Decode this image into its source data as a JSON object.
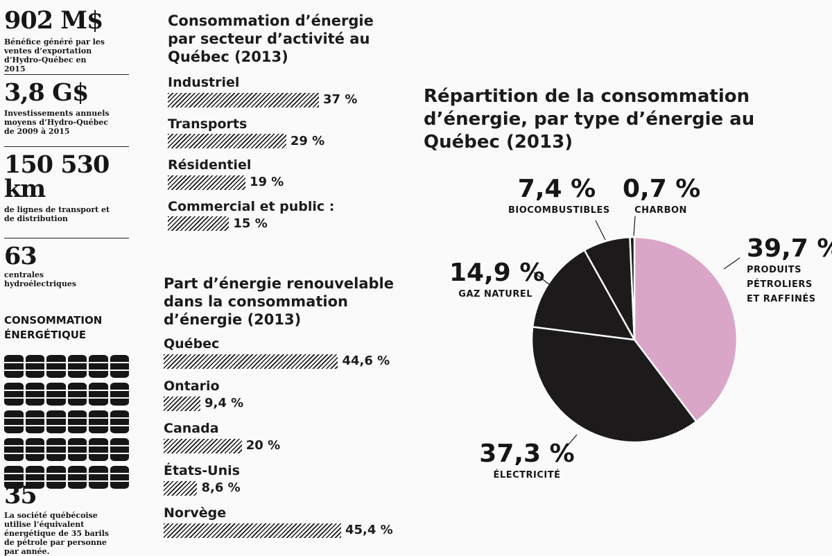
{
  "stats": [
    {
      "value": "902 M$",
      "desc": "Bénéfice généré par les ventes d’exportation d’Hydro-Québec en 2015"
    },
    {
      "value": "3,8 G$",
      "desc": "Investissements annuels moyens d’Hydro-Québec de 2009 à 2015"
    },
    {
      "value": "150 530 km",
      "desc": "de lignes de transport et de distribution"
    },
    {
      "value": "63",
      "desc": "centrales hydroélectriques"
    }
  ],
  "conso": {
    "heading": "CONSOMMATION ÉNERGÉTIQUE",
    "barrels": 35,
    "value": "35",
    "desc": "La société québécoise utilise l’équivalent énergétique de 35 barils de pétrole par personne par année."
  },
  "chart_data": [
    {
      "type": "bar",
      "title": "Consommation d’énergie par secteur d’activité au Québec (2013)",
      "categories": [
        "Industriel",
        "Transports",
        "Résidentiel",
        "Commercial et public :"
      ],
      "values": [
        37,
        29,
        19,
        15
      ],
      "value_labels": [
        "37 %",
        "29 %",
        "19 %",
        "15 %"
      ],
      "unit": "%"
    },
    {
      "type": "bar",
      "title": "Part d’énergie renouvelable dans la consommation d’énergie (2013)",
      "categories": [
        "Québec",
        "Ontario",
        "Canada",
        "États-Unis",
        "Norvège"
      ],
      "values": [
        44.6,
        9.4,
        20,
        8.6,
        45.4
      ],
      "value_labels": [
        "44,6 %",
        "9,4 %",
        "20 %",
        "8,6 %",
        "45,4 %"
      ],
      "unit": "%"
    },
    {
      "type": "pie",
      "title": "Répartition de la consommation d’énergie, par type d’énergie au Québec (2013)",
      "categories": [
        "Produits pétroliers et raffinés",
        "Électricité",
        "Gaz naturel",
        "Biocombustibles",
        "Charbon"
      ],
      "values": [
        39.7,
        37.3,
        14.9,
        7.4,
        0.7
      ],
      "value_labels": [
        "39,7 %",
        "37,3 %",
        "14,9 %",
        "7,4 %",
        "0,7 %"
      ],
      "label_lines": [
        [
          "PRODUITS",
          "PÉTROLIERS",
          "ET RAFFINÉS"
        ],
        [
          "ÉLECTRICITÉ"
        ],
        [
          "GAZ NATUREL"
        ],
        [
          "BIOCOMBUSTIBLES"
        ],
        [
          "CHARBON"
        ]
      ],
      "colors": [
        "#d9a6c8",
        "#1c1a1b",
        "#1c1a1b",
        "#1c1a1b",
        "#1c1a1b"
      ],
      "start": "12 o'clock, clockwise"
    }
  ]
}
